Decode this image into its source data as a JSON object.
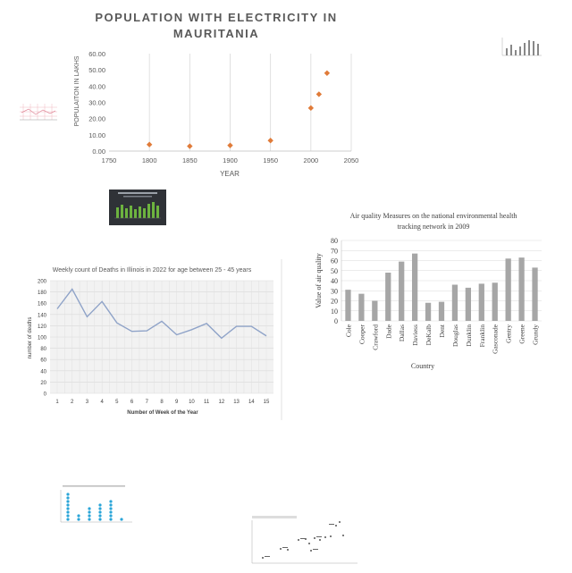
{
  "chart_data": [
    {
      "type": "scatter",
      "title": "POPULATION WITH ELECTRICITY IN MAURITANIA",
      "xlabel": "YEAR",
      "ylabel": "POPULAITON IN LAKHS",
      "xlim": [
        1750,
        2050
      ],
      "ylim": [
        0,
        60
      ],
      "x_ticks": [
        "1750",
        "1800",
        "1850",
        "1900",
        "1950",
        "2000",
        "2050"
      ],
      "y_ticks": [
        "0.00",
        "10.00",
        "20.00",
        "30.00",
        "40.00",
        "50.00",
        "60.00"
      ],
      "grid": "vertical",
      "marker_color": "#E07B39",
      "points": [
        {
          "x": 1800,
          "y": 4
        },
        {
          "x": 1850,
          "y": 3
        },
        {
          "x": 1900,
          "y": 3.5
        },
        {
          "x": 1950,
          "y": 6.5
        },
        {
          "x": 2000,
          "y": 26.5
        },
        {
          "x": 2010,
          "y": 35
        },
        {
          "x": 2020,
          "y": 48
        }
      ]
    },
    {
      "type": "line",
      "title": "Weekly count of Deaths in Illinois in 2022 for age between 25 - 45 years",
      "xlabel": "Number of Week of the Year",
      "ylabel": "number of deaths",
      "ylim": [
        0,
        200
      ],
      "y_ticks": [
        "0",
        "20",
        "40",
        "60",
        "80",
        "100",
        "120",
        "140",
        "160",
        "180",
        "200"
      ],
      "categories": [
        "1",
        "2",
        "3",
        "4",
        "5",
        "6",
        "7",
        "8",
        "9",
        "10",
        "11",
        "12",
        "13",
        "14",
        "15"
      ],
      "values": [
        150,
        185,
        136,
        163,
        125,
        110,
        111,
        128,
        104,
        113,
        124,
        98,
        119,
        119,
        102
      ],
      "grid": "both",
      "line_color": "#8FA3C8"
    },
    {
      "type": "bar",
      "title": "Air quality Measures on the national environmental health tracking network in 2009",
      "xlabel": "Country",
      "ylabel": "Value of  air quality",
      "ylim": [
        0,
        80
      ],
      "y_ticks": [
        "0",
        "10",
        "20",
        "30",
        "40",
        "50",
        "60",
        "70",
        "80"
      ],
      "categories": [
        "Cole",
        "Cooper",
        "Crawford",
        "Dade",
        "Dallas",
        "Daviess",
        "DeKalb",
        "Dent",
        "Douglas",
        "Dunklin",
        "Franklin",
        "Gasconade",
        "Gentry",
        "Greene",
        "Grundy"
      ],
      "values": [
        31,
        27,
        20,
        48,
        59,
        67,
        18,
        19,
        36,
        33,
        37,
        38,
        62,
        63,
        53
      ],
      "bar_color": "#A6A6A6",
      "grid": "horizontal"
    }
  ]
}
